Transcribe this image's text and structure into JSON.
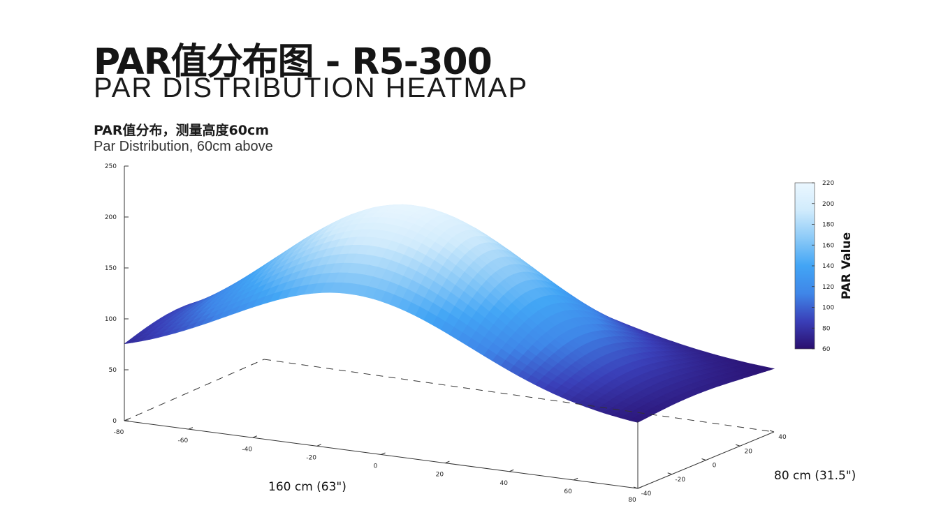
{
  "header": {
    "title_cn": "PAR值分布图 - R5-300",
    "title_en": "PAR DISTRIBUTION HEATMAP",
    "subtitle_cn": "PAR值分布，测量高度60cm",
    "subtitle_en": "Par Distribution, 60cm above"
  },
  "chart_data": {
    "type": "surface3d",
    "title": "PAR值分布，测量高度60cm",
    "x_axis": {
      "label": "160 cm (63\")",
      "range": [
        -80,
        80
      ],
      "ticks": [
        "-80",
        "-60",
        "-40",
        "-20",
        "0",
        "20",
        "40",
        "60",
        "80"
      ]
    },
    "y_axis": {
      "label": "80 cm (31.5\")",
      "range": [
        -40,
        40
      ],
      "ticks": [
        "-40",
        "-20",
        "0",
        "20",
        "40"
      ]
    },
    "z_axis": {
      "label": "",
      "range": [
        0,
        250
      ],
      "ticks": [
        "0",
        "50",
        "100",
        "150",
        "200",
        "250"
      ]
    },
    "colorbar": {
      "label": "PAR Value",
      "range": [
        60,
        220
      ],
      "ticks": [
        "60",
        "80",
        "100",
        "120",
        "140",
        "160",
        "180",
        "200",
        "220"
      ],
      "colors": [
        "#2a0f6e",
        "#3a3fb8",
        "#3f86e8",
        "#42a5f5",
        "#8ccaf7",
        "#d0ebfc",
        "#ebf7ff"
      ]
    },
    "surface": {
      "peak_value": 215,
      "corner_values": {
        "x-80_y-40": 70,
        "x80_y-40": 75,
        "x-80_y40": 65,
        "x80_y40": 62
      }
    },
    "grid": false
  }
}
